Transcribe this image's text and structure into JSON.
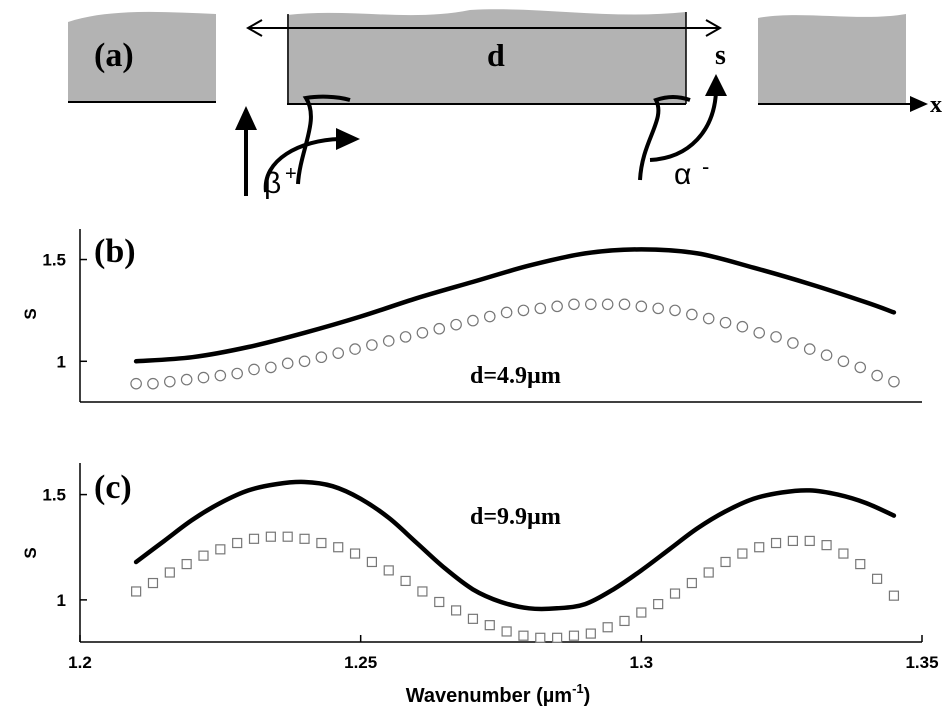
{
  "panel_a": {
    "label": "(a)",
    "d_label": "d",
    "s_label": "s",
    "x_label": "x",
    "beta_label": "β",
    "beta_sup": "+",
    "alpha_label": "α",
    "alpha_sup": "-",
    "colors": {
      "block": "#b3b3b3",
      "line": "#000000"
    }
  },
  "chart_data": [
    {
      "type": "line",
      "panel_label": "(b)",
      "annotation": "d=4.9µm",
      "xlabel": "",
      "ylabel": "S",
      "xlim": [
        1.2,
        1.35
      ],
      "ylim": [
        0.8,
        1.65
      ],
      "yticks": [
        1,
        1.5
      ],
      "ytick_labels": [
        "1",
        "1.5"
      ],
      "xticks": [],
      "series": [
        {
          "style": "solid",
          "color": "#000000",
          "x": [
            1.21,
            1.22,
            1.23,
            1.24,
            1.25,
            1.26,
            1.27,
            1.28,
            1.29,
            1.3,
            1.31,
            1.32,
            1.33,
            1.34,
            1.345
          ],
          "y": [
            1.0,
            1.02,
            1.07,
            1.14,
            1.22,
            1.31,
            1.39,
            1.47,
            1.53,
            1.55,
            1.53,
            1.46,
            1.38,
            1.29,
            1.24
          ]
        },
        {
          "style": "circle-markers",
          "color": "#777777",
          "x": [
            1.21,
            1.213,
            1.216,
            1.219,
            1.222,
            1.225,
            1.228,
            1.231,
            1.234,
            1.237,
            1.24,
            1.243,
            1.246,
            1.249,
            1.252,
            1.255,
            1.258,
            1.261,
            1.264,
            1.267,
            1.27,
            1.273,
            1.276,
            1.279,
            1.282,
            1.285,
            1.288,
            1.291,
            1.294,
            1.297,
            1.3,
            1.303,
            1.306,
            1.309,
            1.312,
            1.315,
            1.318,
            1.321,
            1.324,
            1.327,
            1.33,
            1.333,
            1.336,
            1.339,
            1.342,
            1.345
          ],
          "y": [
            0.89,
            0.89,
            0.9,
            0.91,
            0.92,
            0.93,
            0.94,
            0.96,
            0.97,
            0.99,
            1.0,
            1.02,
            1.04,
            1.06,
            1.08,
            1.1,
            1.12,
            1.14,
            1.16,
            1.18,
            1.2,
            1.22,
            1.24,
            1.25,
            1.26,
            1.27,
            1.28,
            1.28,
            1.28,
            1.28,
            1.27,
            1.26,
            1.25,
            1.23,
            1.21,
            1.19,
            1.17,
            1.14,
            1.12,
            1.09,
            1.06,
            1.03,
            1.0,
            0.97,
            0.93,
            0.9
          ]
        }
      ]
    },
    {
      "type": "line",
      "panel_label": "(c)",
      "annotation": "d=9.9µm",
      "xlabel": "Wavenumber (µm",
      "xlabel_sup": "-1",
      "xlabel_end": ")",
      "ylabel": "S",
      "xlim": [
        1.2,
        1.35
      ],
      "ylim": [
        0.8,
        1.65
      ],
      "yticks": [
        1,
        1.5
      ],
      "ytick_labels": [
        "1",
        "1.5"
      ],
      "xticks": [
        1.2,
        1.25,
        1.3,
        1.35
      ],
      "xtick_labels": [
        "1.2",
        "1.25",
        "1.3",
        "1.35"
      ],
      "series": [
        {
          "style": "solid",
          "color": "#000000",
          "x": [
            1.21,
            1.215,
            1.22,
            1.225,
            1.23,
            1.235,
            1.24,
            1.245,
            1.25,
            1.255,
            1.26,
            1.265,
            1.27,
            1.275,
            1.28,
            1.285,
            1.29,
            1.295,
            1.3,
            1.305,
            1.31,
            1.315,
            1.32,
            1.325,
            1.33,
            1.335,
            1.34,
            1.345
          ],
          "y": [
            1.18,
            1.28,
            1.38,
            1.46,
            1.52,
            1.55,
            1.56,
            1.54,
            1.48,
            1.39,
            1.27,
            1.15,
            1.05,
            0.99,
            0.96,
            0.96,
            0.98,
            1.05,
            1.14,
            1.24,
            1.34,
            1.42,
            1.48,
            1.51,
            1.52,
            1.5,
            1.46,
            1.4
          ]
        },
        {
          "style": "square-markers",
          "color": "#777777",
          "x": [
            1.21,
            1.213,
            1.216,
            1.219,
            1.222,
            1.225,
            1.228,
            1.231,
            1.234,
            1.237,
            1.24,
            1.243,
            1.246,
            1.249,
            1.252,
            1.255,
            1.258,
            1.261,
            1.264,
            1.267,
            1.27,
            1.273,
            1.276,
            1.279,
            1.282,
            1.285,
            1.288,
            1.291,
            1.294,
            1.297,
            1.3,
            1.303,
            1.306,
            1.309,
            1.312,
            1.315,
            1.318,
            1.321,
            1.324,
            1.327,
            1.33,
            1.333,
            1.336,
            1.339,
            1.342,
            1.345
          ],
          "y": [
            1.04,
            1.08,
            1.13,
            1.17,
            1.21,
            1.24,
            1.27,
            1.29,
            1.3,
            1.3,
            1.29,
            1.27,
            1.25,
            1.22,
            1.18,
            1.14,
            1.09,
            1.04,
            0.99,
            0.95,
            0.91,
            0.88,
            0.85,
            0.83,
            0.82,
            0.82,
            0.83,
            0.84,
            0.87,
            0.9,
            0.94,
            0.98,
            1.03,
            1.08,
            1.13,
            1.18,
            1.22,
            1.25,
            1.27,
            1.28,
            1.28,
            1.26,
            1.22,
            1.17,
            1.1,
            1.02
          ]
        }
      ]
    }
  ]
}
